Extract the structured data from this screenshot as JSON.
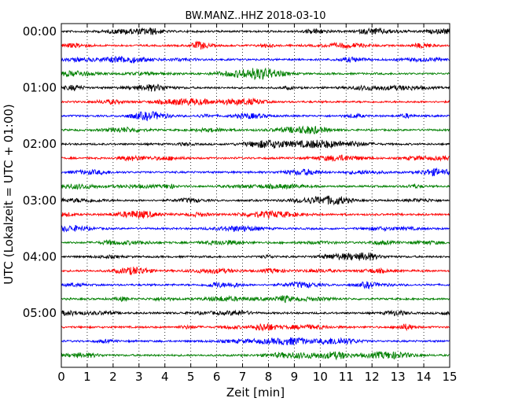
{
  "chart_data": {
    "type": "line",
    "title": "BW.MANZ..HHZ 2018-03-10",
    "xlabel": "Zeit  [min]",
    "ylabel": "UTC (Lokalzeit = UTC + 01:00)",
    "xlim": [
      0,
      15
    ],
    "x_ticks": [
      "0",
      "1",
      "2",
      "3",
      "4",
      "5",
      "6",
      "7",
      "8",
      "9",
      "10",
      "11",
      "12",
      "13",
      "14",
      "15"
    ],
    "y_ticks": [
      "00:00",
      "01:00",
      "02:00",
      "03:00",
      "04:00",
      "05:00"
    ],
    "trace_minutes": 15,
    "trace_colors": [
      "#000000",
      "#ff0000",
      "#0000ff",
      "#008000"
    ],
    "grid": "vertical dotted",
    "traces": [
      {
        "start": "00:00",
        "color": "#000000"
      },
      {
        "start": "00:15",
        "color": "#ff0000"
      },
      {
        "start": "00:30",
        "color": "#0000ff"
      },
      {
        "start": "00:45",
        "color": "#008000"
      },
      {
        "start": "01:00",
        "color": "#000000"
      },
      {
        "start": "01:15",
        "color": "#ff0000"
      },
      {
        "start": "01:30",
        "color": "#0000ff"
      },
      {
        "start": "01:45",
        "color": "#008000"
      },
      {
        "start": "02:00",
        "color": "#000000"
      },
      {
        "start": "02:15",
        "color": "#ff0000"
      },
      {
        "start": "02:30",
        "color": "#0000ff"
      },
      {
        "start": "02:45",
        "color": "#008000"
      },
      {
        "start": "03:00",
        "color": "#000000"
      },
      {
        "start": "03:15",
        "color": "#ff0000"
      },
      {
        "start": "03:30",
        "color": "#0000ff"
      },
      {
        "start": "03:45",
        "color": "#008000"
      },
      {
        "start": "04:00",
        "color": "#000000"
      },
      {
        "start": "04:15",
        "color": "#ff0000"
      },
      {
        "start": "04:30",
        "color": "#0000ff"
      },
      {
        "start": "04:45",
        "color": "#008000"
      },
      {
        "start": "05:00",
        "color": "#000000"
      },
      {
        "start": "05:15",
        "color": "#ff0000"
      },
      {
        "start": "05:30",
        "color": "#0000ff"
      },
      {
        "start": "05:45",
        "color": "#008000"
      }
    ]
  }
}
